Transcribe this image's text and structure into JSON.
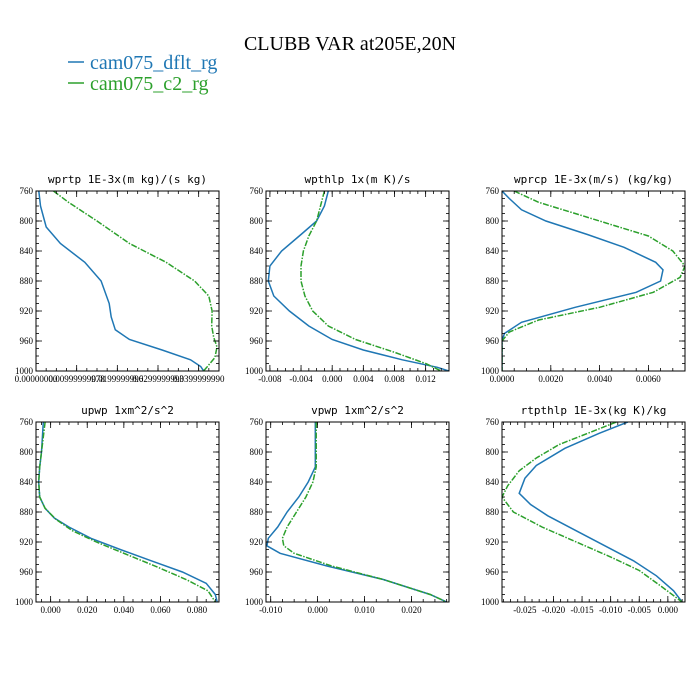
{
  "figure": {
    "title": "CLUBB VAR at205E,20N",
    "legend": [
      {
        "label": "cam075_dflt_rg",
        "color": "#1f77b4"
      },
      {
        "label": "cam075_c2_rg",
        "color": "#2ca02c"
      }
    ]
  },
  "chart_data": [
    {
      "type": "line",
      "title": "wprtp  1E-3x(m kg)/(s kg)",
      "xlim": [
        0,
        0.045
      ],
      "xticks": [
        0,
        0.01,
        0.02,
        0.03,
        0.04
      ],
      "xtick_labels": [
        "0.00000000",
        "0.00999999978",
        "0.0199999996",
        "0.0299999993",
        "0.0399999990"
      ],
      "ylim": [
        760,
        1000
      ],
      "yticks": [
        760,
        800,
        840,
        880,
        920,
        960,
        1000
      ],
      "series": [
        {
          "name": "cam075_dflt_rg",
          "color": "#1f77b4",
          "x": [
            0.0007,
            0.0011,
            0.0025,
            0.006,
            0.012,
            0.016,
            0.018,
            0.0185,
            0.0195,
            0.023,
            0.031,
            0.038,
            0.0405,
            0.041,
            0.0413
          ],
          "y": [
            760,
            780,
            808,
            830,
            855,
            880,
            910,
            928,
            945,
            958,
            972,
            985,
            994,
            998,
            1000
          ]
        },
        {
          "name": "cam075_c2_rg",
          "color": "#2ca02c",
          "x": [
            0.0043,
            0.008,
            0.015,
            0.023,
            0.032,
            0.039,
            0.0425,
            0.0433,
            0.0432,
            0.0437,
            0.0445,
            0.044,
            0.042,
            0.0412
          ],
          "y": [
            760,
            775,
            800,
            830,
            855,
            880,
            900,
            920,
            940,
            955,
            968,
            982,
            995,
            1000
          ]
        }
      ]
    },
    {
      "type": "line",
      "title": "wpthlp  1x(m K)/s",
      "xlim": [
        -0.0085,
        0.015
      ],
      "xticks": [
        -0.008,
        -0.004,
        0,
        0.004,
        0.008,
        0.012
      ],
      "xtick_labels": [
        "-0.008",
        "-0.004",
        "0.000",
        "0.004",
        "0.008",
        "0.012"
      ],
      "ylim": [
        760,
        1000
      ],
      "yticks": [
        760,
        800,
        840,
        880,
        920,
        960,
        1000
      ],
      "series": [
        {
          "name": "cam075_dflt_rg",
          "color": "#1f77b4",
          "x": [
            -0.0005,
            -0.001,
            -0.002,
            -0.004,
            -0.0065,
            -0.008,
            -0.0082,
            -0.0075,
            -0.0055,
            -0.003,
            0.0,
            0.004,
            0.009,
            0.0135,
            0.015
          ],
          "y": [
            760,
            780,
            800,
            818,
            840,
            860,
            880,
            900,
            920,
            940,
            958,
            972,
            985,
            995,
            1000
          ]
        },
        {
          "name": "cam075_c2_rg",
          "color": "#2ca02c",
          "x": [
            -0.001,
            -0.0015,
            -0.002,
            -0.003,
            -0.0037,
            -0.004,
            -0.004,
            -0.0035,
            -0.0025,
            -0.0005,
            0.003,
            0.008,
            0.012,
            0.014
          ],
          "y": [
            760,
            780,
            800,
            820,
            840,
            860,
            880,
            900,
            920,
            940,
            958,
            975,
            990,
            1000
          ]
        }
      ]
    },
    {
      "type": "line",
      "title": "wprcp  1E-3x(m/s) (kg/kg)",
      "xlim": [
        0,
        0.0075
      ],
      "xticks": [
        0,
        0.002,
        0.004,
        0.006
      ],
      "xtick_labels": [
        "0.0000",
        "0.0020",
        "0.0040",
        "0.0060"
      ],
      "ylim": [
        760,
        1000
      ],
      "yticks": [
        760,
        800,
        840,
        880,
        920,
        960,
        1000
      ],
      "series": [
        {
          "name": "cam075_dflt_rg",
          "color": "#1f77b4",
          "x": [
            0.0,
            0.0003,
            0.0008,
            0.0018,
            0.0035,
            0.005,
            0.0063,
            0.0066,
            0.0065,
            0.0055,
            0.003,
            0.0008,
            0.0001,
            0.0,
            0.0
          ],
          "y": [
            760,
            770,
            785,
            800,
            818,
            835,
            855,
            865,
            880,
            895,
            915,
            935,
            950,
            960,
            1000
          ]
        },
        {
          "name": "cam075_c2_rg",
          "color": "#2ca02c",
          "x": [
            0.0005,
            0.0015,
            0.003,
            0.0045,
            0.006,
            0.007,
            0.0075,
            0.0073,
            0.0062,
            0.004,
            0.0015,
            0.0003,
            0.0,
            0.0
          ],
          "y": [
            760,
            775,
            790,
            805,
            820,
            840,
            860,
            875,
            895,
            915,
            932,
            948,
            960,
            1000
          ]
        }
      ]
    },
    {
      "type": "line",
      "title": "upwp  1xm^2/s^2",
      "xlim": [
        -0.008,
        0.092
      ],
      "xticks": [
        0,
        0.02,
        0.04,
        0.06,
        0.08
      ],
      "xtick_labels": [
        "0.000",
        "0.020",
        "0.040",
        "0.060",
        "0.080"
      ],
      "ylim": [
        760,
        1000
      ],
      "yticks": [
        760,
        800,
        840,
        880,
        920,
        960,
        1000
      ],
      "series": [
        {
          "name": "cam075_dflt_rg",
          "color": "#1f77b4",
          "x": [
            -0.004,
            -0.0045,
            -0.005,
            -0.006,
            -0.0065,
            -0.006,
            -0.003,
            0.002,
            0.01,
            0.022,
            0.038,
            0.055,
            0.072,
            0.085,
            0.09,
            0.091
          ],
          "y": [
            760,
            780,
            800,
            820,
            840,
            860,
            875,
            888,
            900,
            915,
            930,
            945,
            960,
            975,
            990,
            1000
          ]
        },
        {
          "name": "cam075_c2_rg",
          "color": "#2ca02c",
          "x": [
            -0.003,
            -0.004,
            -0.005,
            -0.006,
            -0.0065,
            -0.006,
            -0.003,
            0.003,
            0.012,
            0.025,
            0.042,
            0.058,
            0.074,
            0.086,
            0.09
          ],
          "y": [
            760,
            780,
            800,
            820,
            840,
            860,
            875,
            890,
            905,
            920,
            937,
            953,
            970,
            985,
            1000
          ]
        }
      ]
    },
    {
      "type": "line",
      "title": "vpwp  1xm^2/s^2",
      "xlim": [
        -0.011,
        0.028
      ],
      "xticks": [
        -0.01,
        0,
        0.01,
        0.02
      ],
      "xtick_labels": [
        "-0.010",
        "0.000",
        "0.010",
        "0.020"
      ],
      "ylim": [
        760,
        1000
      ],
      "yticks": [
        760,
        800,
        840,
        880,
        920,
        960,
        1000
      ],
      "series": [
        {
          "name": "cam075_dflt_rg",
          "color": "#1f77b4",
          "x": [
            -0.0005,
            -0.0005,
            -0.0005,
            -0.002,
            -0.004,
            -0.0065,
            -0.0085,
            -0.0105,
            -0.0108,
            -0.008,
            0.002,
            0.014,
            0.024,
            0.0275
          ],
          "y": [
            760,
            780,
            820,
            840,
            860,
            880,
            900,
            915,
            925,
            935,
            952,
            970,
            990,
            1000
          ]
        },
        {
          "name": "cam075_c2_rg",
          "color": "#2ca02c",
          "x": [
            -0.0003,
            -0.0003,
            -0.0003,
            -0.001,
            -0.0025,
            -0.0045,
            -0.0065,
            -0.0075,
            -0.0072,
            -0.005,
            0.003,
            0.014,
            0.024,
            0.0275
          ],
          "y": [
            760,
            780,
            820,
            840,
            860,
            880,
            900,
            915,
            925,
            935,
            952,
            970,
            990,
            1000
          ]
        }
      ]
    },
    {
      "type": "line",
      "title": "rtpthlp  1E-3x(kg K)/kg",
      "xlim": [
        -0.029,
        0.003
      ],
      "xticks": [
        -0.025,
        -0.02,
        -0.015,
        -0.01,
        -0.005,
        0
      ],
      "xtick_labels": [
        "-0.025",
        "-0.020",
        "-0.015",
        "-0.010",
        "-0.005",
        "0.000"
      ],
      "ylim": [
        760,
        1000
      ],
      "yticks": [
        760,
        800,
        840,
        880,
        920,
        960,
        1000
      ],
      "series": [
        {
          "name": "cam075_dflt_rg",
          "color": "#1f77b4",
          "x": [
            -0.007,
            -0.012,
            -0.018,
            -0.023,
            -0.025,
            -0.026,
            -0.024,
            -0.021,
            -0.016,
            -0.011,
            -0.006,
            -0.002,
            0.001,
            0.0025
          ],
          "y": [
            760,
            775,
            795,
            818,
            835,
            855,
            870,
            885,
            905,
            925,
            945,
            965,
            985,
            1000
          ]
        },
        {
          "name": "cam075_c2_rg",
          "color": "#2ca02c",
          "x": [
            -0.009,
            -0.014,
            -0.019,
            -0.023,
            -0.026,
            -0.028,
            -0.029,
            -0.027,
            -0.022,
            -0.016,
            -0.01,
            -0.005,
            -0.001,
            0.0025
          ],
          "y": [
            760,
            775,
            790,
            808,
            825,
            845,
            860,
            880,
            900,
            920,
            940,
            958,
            980,
            1000
          ]
        }
      ]
    }
  ]
}
